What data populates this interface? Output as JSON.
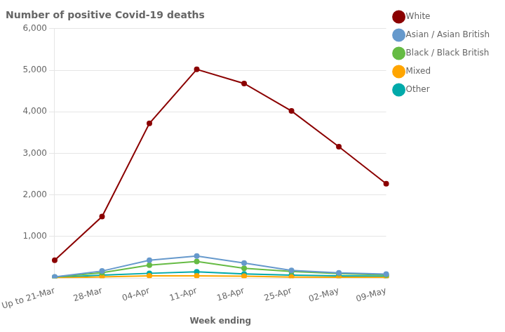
{
  "chart_data": {
    "type": "line",
    "title": "Number of positive Covid-19 deaths",
    "x_label": "Week ending",
    "categories": [
      "Up to 21-Mar",
      "28-Mar",
      "04-Apr",
      "11-Apr",
      "18-Apr",
      "25-Apr",
      "02-May",
      "09-May"
    ],
    "series": [
      {
        "name": "White",
        "color": "#8B0000",
        "marker": "circle",
        "values": [
          430,
          1480,
          3720,
          5020,
          4680,
          4020,
          3160,
          2270
        ]
      },
      {
        "name": "Asian / Asian British",
        "color": "#6699CC",
        "marker": "circle",
        "values": [
          30,
          170,
          430,
          530,
          360,
          185,
          125,
          95
        ]
      },
      {
        "name": "Black / Black British",
        "color": "#66BB44",
        "marker": "circle",
        "values": [
          25,
          130,
          310,
          400,
          235,
          160,
          110,
          75
        ]
      },
      {
        "name": "Mixed",
        "color": "#FFA500",
        "marker": "circle",
        "values": [
          5,
          30,
          55,
          55,
          45,
          25,
          20,
          15
        ]
      },
      {
        "name": "Other",
        "color": "#00AAAA",
        "marker": "circle",
        "values": [
          15,
          70,
          115,
          150,
          100,
          70,
          55,
          45
        ]
      }
    ],
    "ylim": [
      0,
      6000
    ],
    "yticks": [
      {
        "value": 1000,
        "label": "1,000"
      },
      {
        "value": 2000,
        "label": "2,000"
      },
      {
        "value": 3000,
        "label": "3,000"
      },
      {
        "value": 4000,
        "label": "4,000"
      },
      {
        "value": 5000,
        "label": "5,000"
      },
      {
        "value": 6000,
        "label": "6,000"
      }
    ],
    "grid": true,
    "legend": "right"
  }
}
